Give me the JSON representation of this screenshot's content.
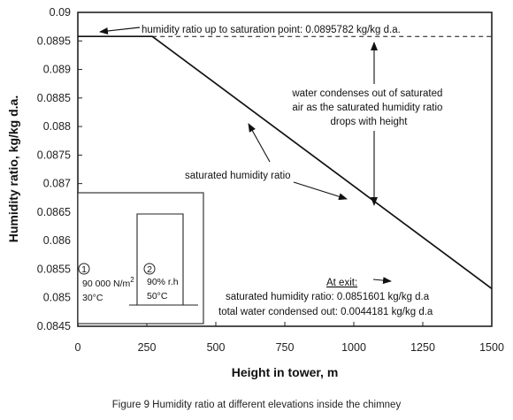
{
  "chart_data": {
    "type": "line",
    "xlabel": "Height in tower, m",
    "ylabel": "Humidity ratio, kg/kg d.a.",
    "xlim": [
      0,
      1500
    ],
    "ylim": [
      0.0845,
      0.09
    ],
    "x_ticks": [
      "0",
      "250",
      "500",
      "750",
      "1000",
      "1250",
      "1500"
    ],
    "y_ticks": [
      "0.0845",
      "0.085",
      "0.0855",
      "0.086",
      "0.0865",
      "0.087",
      "0.0875",
      "0.088",
      "0.0885",
      "0.089",
      "0.0895",
      "0.09"
    ],
    "series": [
      {
        "name": "saturated humidity ratio",
        "style": "solid",
        "x": [
          0,
          270,
          1500
        ],
        "y": [
          0.0895782,
          0.0895782,
          0.0851601
        ]
      },
      {
        "name": "",
        "style": "dashed",
        "x": [
          270,
          1500
        ],
        "y": [
          0.0895782,
          0.0895782
        ]
      }
    ],
    "annotations": {
      "saturation_point": "humidity ratio up to saturation point: 0.0895782 kg/kg d.a.",
      "condenses": [
        "water condenses out of saturated",
        "air as the saturated humidity ratio",
        "drops with height"
      ],
      "series_label": "saturated humidity ratio",
      "exit_heading": "At exit:",
      "exit_ratio": "saturated humidity ratio: 0.0851601 kg/kg d.a",
      "exit_condensed": "total water condensed out: 0.0044181 kg/kg d.a"
    },
    "inset": {
      "marker1": "1",
      "marker2": "2",
      "pressure_value": "90 000 N/m",
      "pressure_exp": "2",
      "temp1": "30°C",
      "rh": "90% r.h",
      "temp2": "50°C"
    },
    "grid": false,
    "legend": "none"
  },
  "caption": "Figure 9  Humidity ratio at different elevations inside the chimney"
}
